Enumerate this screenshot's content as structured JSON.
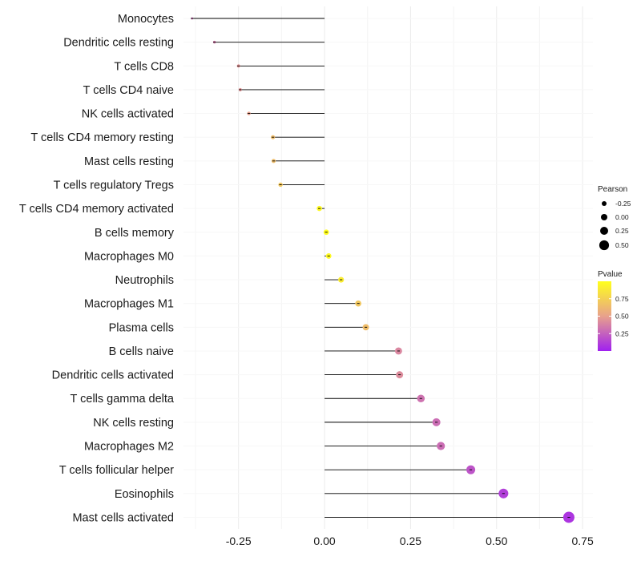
{
  "chart_data": {
    "type": "lollipop",
    "categories": [
      "Monocytes",
      "Dendritic cells resting",
      "T cells CD8",
      "T cells CD4 naive",
      "NK cells activated",
      "T cells CD4 memory resting",
      "Mast cells resting",
      "T cells regulatory  Tregs",
      "T cells CD4 memory activated",
      "B cells memory",
      "Macrophages M0",
      "Neutrophils",
      "Macrophages M1",
      "Plasma cells",
      "B cells naive",
      "Dendritic cells activated",
      "T cells gamma delta",
      "NK cells resting",
      "Macrophages M2",
      "T cells follicular helper",
      "Eosinophils",
      "Mast cells activated"
    ],
    "values": [
      -0.385,
      -0.32,
      -0.25,
      -0.245,
      -0.22,
      -0.15,
      -0.148,
      -0.128,
      -0.015,
      0.005,
      0.012,
      0.048,
      0.098,
      0.12,
      0.215,
      0.218,
      0.28,
      0.325,
      0.338,
      0.425,
      0.52,
      0.71
    ],
    "pvalues": [
      0.3,
      0.35,
      0.45,
      0.45,
      0.5,
      0.65,
      0.65,
      0.7,
      0.97,
      0.99,
      0.97,
      0.9,
      0.7,
      0.65,
      0.4,
      0.42,
      0.32,
      0.3,
      0.3,
      0.2,
      0.12,
      0.08
    ],
    "xticks": [
      -0.25,
      0.0,
      0.25,
      0.5,
      0.75
    ],
    "xtick_labels": [
      "-0.25",
      "0.00",
      "0.25",
      "0.50",
      "0.75"
    ],
    "xlim": [
      -0.41,
      0.78
    ],
    "baseline": 0,
    "legend_size": {
      "title": "Pearson",
      "breaks": [
        -0.25,
        0.0,
        0.25,
        0.5
      ],
      "labels": [
        "-0.25",
        "0.00",
        "0.25",
        "0.50"
      ]
    },
    "legend_color": {
      "title": "Pvalue",
      "breaks": [
        0.25,
        0.5,
        0.75
      ],
      "labels": [
        "0.25",
        "0.50",
        "0.75"
      ],
      "colors": [
        "#A020F0",
        "#E8A18C",
        "#FFFF1C"
      ]
    }
  }
}
